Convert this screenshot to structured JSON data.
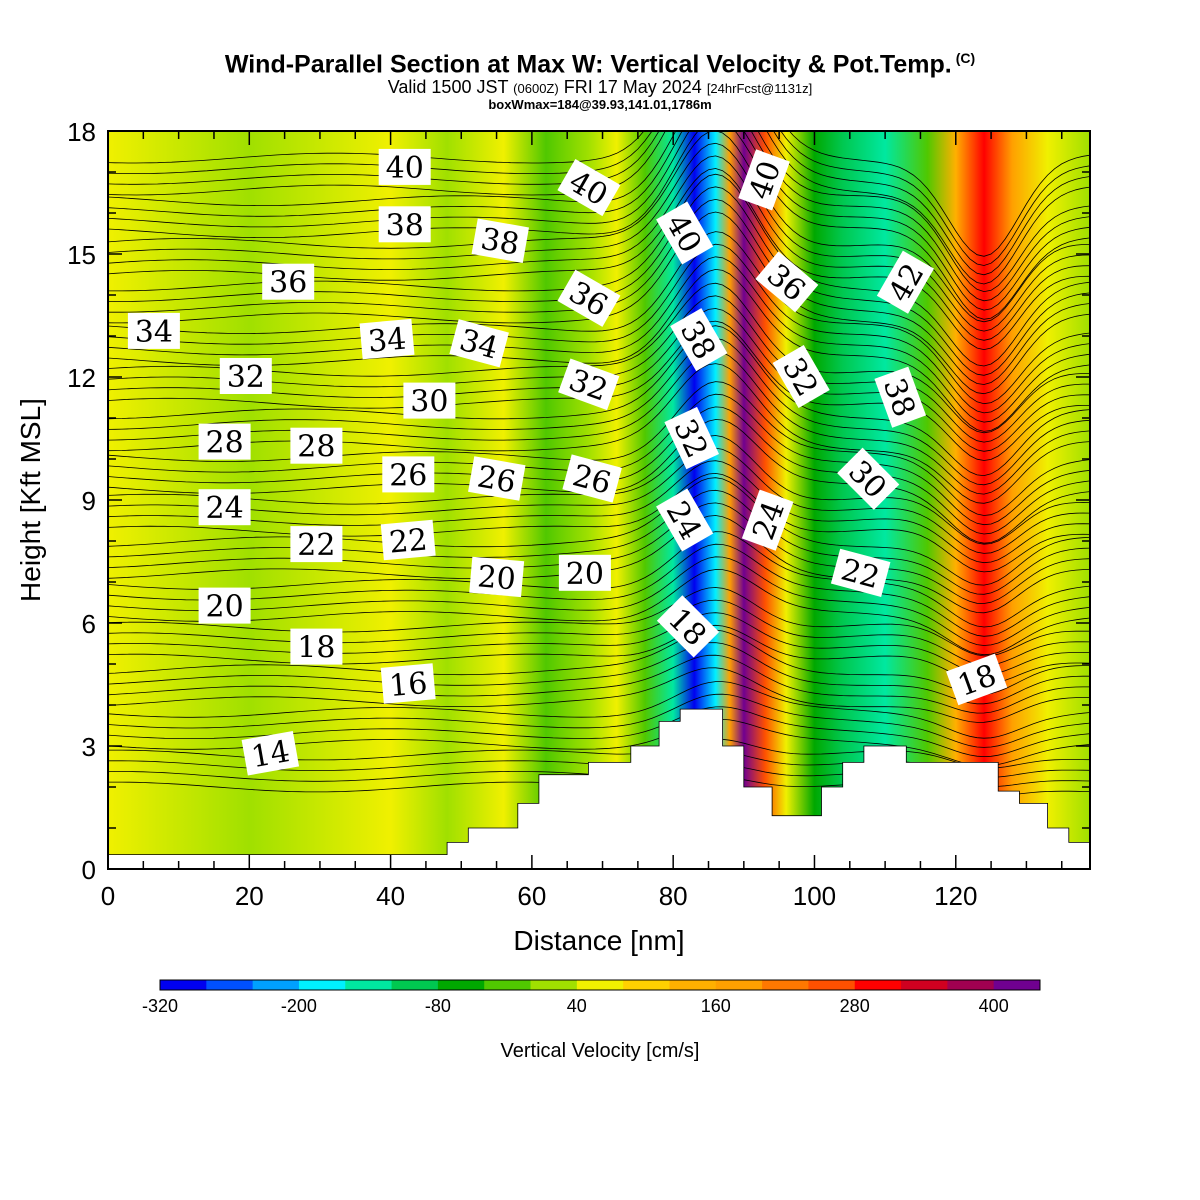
{
  "title": {
    "main": "Wind-Parallel Section at Max W: Vertical Velocity & Pot.Temp.",
    "copyright": "(C)",
    "valid_prefix": "Valid 1500 JST",
    "valid_utc": "(0600Z)",
    "valid_date": "FRI 17 May 2024",
    "valid_fcst": "[24hrFcst@1131z]",
    "box_info": "boxWmax=184@39.93,141.01,1786m"
  },
  "chart_data": {
    "type": "heatmap",
    "xlabel": "Distance [nm]",
    "ylabel": "Height [Kft MSL]",
    "xlim": [
      0,
      139
    ],
    "ylim": [
      0,
      18
    ],
    "x_ticks": [
      0,
      20,
      40,
      60,
      80,
      100,
      120
    ],
    "y_ticks": [
      0,
      3,
      6,
      9,
      12,
      15,
      18
    ],
    "colorbar": {
      "title": "Vertical Velocity [cm/s]",
      "levels": [
        -320,
        -280,
        -240,
        -200,
        -160,
        -120,
        -80,
        -40,
        0,
        40,
        80,
        120,
        160,
        200,
        240,
        280,
        320,
        360,
        400,
        440
      ],
      "tick_labels": [
        "-320",
        "-200",
        "-80",
        "40",
        "160",
        "280",
        "400"
      ],
      "colors": [
        "#0000f0",
        "#0050ff",
        "#00a0ff",
        "#00f0ff",
        "#00e8a0",
        "#00c850",
        "#00a800",
        "#50c800",
        "#a0e000",
        "#f0f000",
        "#ffd000",
        "#ffb000",
        "#ffa000",
        "#ff7800",
        "#ff5000",
        "#ff0000",
        "#d00020",
        "#a00050",
        "#700090"
      ]
    },
    "velocity_bands": [
      {
        "x": 0,
        "w": 40
      },
      {
        "x": 20,
        "w": 0
      },
      {
        "x": 40,
        "w": 40
      },
      {
        "x": 48,
        "w": 0
      },
      {
        "x": 56,
        "w": 40
      },
      {
        "x": 62,
        "w": -40
      },
      {
        "x": 68,
        "w": 0
      },
      {
        "x": 72,
        "w": 40
      },
      {
        "x": 76,
        "w": -40
      },
      {
        "x": 80,
        "w": -160
      },
      {
        "x": 83,
        "w": -300
      },
      {
        "x": 86,
        "w": -200
      },
      {
        "x": 88,
        "w": 160
      },
      {
        "x": 90,
        "w": 400
      },
      {
        "x": 93,
        "w": 240
      },
      {
        "x": 96,
        "w": 40
      },
      {
        "x": 100,
        "w": -80
      },
      {
        "x": 104,
        "w": -120
      },
      {
        "x": 110,
        "w": -140
      },
      {
        "x": 116,
        "w": -40
      },
      {
        "x": 120,
        "w": 120
      },
      {
        "x": 124,
        "w": 300
      },
      {
        "x": 128,
        "w": 160
      },
      {
        "x": 133,
        "w": 40
      },
      {
        "x": 139,
        "w": 0
      }
    ],
    "terrain": [
      [
        0,
        0.35
      ],
      [
        48,
        0.35
      ],
      [
        48,
        0.65
      ],
      [
        51,
        0.65
      ],
      [
        51,
        1.0
      ],
      [
        58,
        1.0
      ],
      [
        58,
        1.6
      ],
      [
        61,
        1.6
      ],
      [
        61,
        2.3
      ],
      [
        68,
        2.3
      ],
      [
        68,
        2.6
      ],
      [
        74,
        2.6
      ],
      [
        74,
        3.0
      ],
      [
        78,
        3.0
      ],
      [
        78,
        3.6
      ],
      [
        81,
        3.6
      ],
      [
        81,
        3.9
      ],
      [
        87,
        3.9
      ],
      [
        87,
        3.0
      ],
      [
        90,
        3.0
      ],
      [
        90,
        2.0
      ],
      [
        94,
        2.0
      ],
      [
        94,
        1.3
      ],
      [
        101,
        1.3
      ],
      [
        101,
        2.0
      ],
      [
        104,
        2.0
      ],
      [
        104,
        2.6
      ],
      [
        107,
        2.6
      ],
      [
        107,
        3.0
      ],
      [
        113,
        3.0
      ],
      [
        113,
        2.6
      ],
      [
        126,
        2.6
      ],
      [
        126,
        1.9
      ],
      [
        129,
        1.9
      ],
      [
        129,
        1.6
      ],
      [
        133,
        1.6
      ],
      [
        133,
        1.0
      ],
      [
        136,
        1.0
      ],
      [
        136,
        0.65
      ],
      [
        139,
        0.65
      ]
    ],
    "theta_contours": [
      14,
      16,
      18,
      20,
      22,
      24,
      26,
      28,
      30,
      32,
      34,
      36,
      38,
      40,
      42
    ],
    "contour_labels": [
      {
        "text": "40",
        "x": 42,
        "y": 17.1,
        "rot": 0
      },
      {
        "text": "40",
        "x": 68,
        "y": 16.6,
        "rot": 30
      },
      {
        "text": "40",
        "x": 81.5,
        "y": 15.5,
        "rot": 60
      },
      {
        "text": "40",
        "x": 93,
        "y": 16.8,
        "rot": -70
      },
      {
        "text": "38",
        "x": 42,
        "y": 15.7,
        "rot": 0
      },
      {
        "text": "38",
        "x": 55.5,
        "y": 15.3,
        "rot": 10
      },
      {
        "text": "36",
        "x": 25.5,
        "y": 14.3,
        "rot": 0
      },
      {
        "text": "36",
        "x": 68,
        "y": 13.9,
        "rot": 30
      },
      {
        "text": "36",
        "x": 96,
        "y": 14.3,
        "rot": 40
      },
      {
        "text": "42",
        "x": 113,
        "y": 14.3,
        "rot": -60
      },
      {
        "text": "34",
        "x": 6.5,
        "y": 13.1,
        "rot": 0
      },
      {
        "text": "34",
        "x": 39.5,
        "y": 12.9,
        "rot": -5
      },
      {
        "text": "34",
        "x": 52.5,
        "y": 12.8,
        "rot": 15
      },
      {
        "text": "38",
        "x": 83.5,
        "y": 12.9,
        "rot": 60
      },
      {
        "text": "32",
        "x": 19.5,
        "y": 12.0,
        "rot": 0
      },
      {
        "text": "32",
        "x": 68,
        "y": 11.8,
        "rot": 20
      },
      {
        "text": "32",
        "x": 98,
        "y": 12.0,
        "rot": 60
      },
      {
        "text": "38",
        "x": 112,
        "y": 11.5,
        "rot": 70
      },
      {
        "text": "30",
        "x": 45.5,
        "y": 11.4,
        "rot": 0
      },
      {
        "text": "32",
        "x": 82.5,
        "y": 10.5,
        "rot": 65
      },
      {
        "text": "28",
        "x": 16.5,
        "y": 10.4,
        "rot": 0
      },
      {
        "text": "28",
        "x": 29.5,
        "y": 10.3,
        "rot": 0
      },
      {
        "text": "30",
        "x": 107.5,
        "y": 9.5,
        "rot": 45
      },
      {
        "text": "26",
        "x": 42.5,
        "y": 9.6,
        "rot": 0
      },
      {
        "text": "26",
        "x": 55,
        "y": 9.5,
        "rot": 10
      },
      {
        "text": "26",
        "x": 68.5,
        "y": 9.5,
        "rot": 15
      },
      {
        "text": "24",
        "x": 16.5,
        "y": 8.8,
        "rot": 0
      },
      {
        "text": "24",
        "x": 81.5,
        "y": 8.5,
        "rot": 60
      },
      {
        "text": "24",
        "x": 93.5,
        "y": 8.5,
        "rot": -70
      },
      {
        "text": "22",
        "x": 29.5,
        "y": 7.9,
        "rot": 0
      },
      {
        "text": "22",
        "x": 42.5,
        "y": 8.0,
        "rot": -5
      },
      {
        "text": "22",
        "x": 106.5,
        "y": 7.2,
        "rot": 15
      },
      {
        "text": "20",
        "x": 16.5,
        "y": 6.4,
        "rot": 0
      },
      {
        "text": "20",
        "x": 55,
        "y": 7.1,
        "rot": 5
      },
      {
        "text": "20",
        "x": 67.5,
        "y": 7.2,
        "rot": 0
      },
      {
        "text": "18",
        "x": 82,
        "y": 5.9,
        "rot": 45
      },
      {
        "text": "18",
        "x": 29.5,
        "y": 5.4,
        "rot": 0
      },
      {
        "text": "16",
        "x": 42.5,
        "y": 4.5,
        "rot": -5
      },
      {
        "text": "14",
        "x": 23,
        "y": 2.8,
        "rot": -10
      },
      {
        "text": "18",
        "x": 123,
        "y": 4.6,
        "rot": -20
      }
    ]
  }
}
